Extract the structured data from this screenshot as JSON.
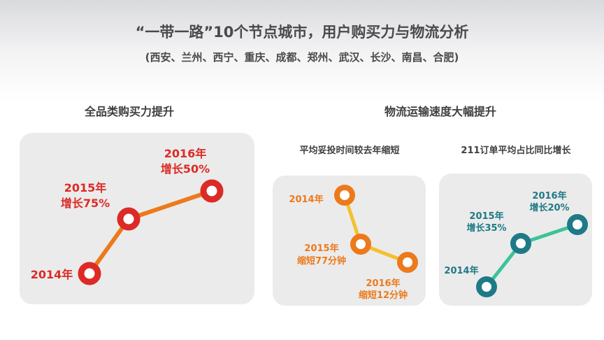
{
  "header": {
    "title": "“一带一路”10个节点城市，用户购买力与物流分析",
    "subtitle": "(西安、兰州、西宁、重庆、成都、郑州、武汉、长沙、南昌、合肥)"
  },
  "sections": {
    "left_title": "全品类购买力提升",
    "right_title": "物流运输速度大幅提升"
  },
  "colors": {
    "red": "#dc2a26",
    "orange": "#ec7a1c",
    "yellow": "#f2c12e",
    "teal": "#1e7a86",
    "green": "#3cc39a"
  },
  "chart_data": [
    {
      "type": "line",
      "title": "",
      "x": [
        "2014年",
        "2015年",
        "2016年"
      ],
      "point_labels": [
        {
          "year": "2014年",
          "text": ""
        },
        {
          "year": "2015年",
          "text": "增长75%"
        },
        {
          "year": "2016年",
          "text": "增长50%"
        }
      ],
      "values": [
        null,
        75,
        50
      ],
      "unit": "%"
    },
    {
      "type": "line",
      "title": "平均妥投时间较去年缩短",
      "x": [
        "2014年",
        "2015年",
        "2016年"
      ],
      "point_labels": [
        {
          "year": "2014年",
          "text": ""
        },
        {
          "year": "2015年",
          "text": "缩短77分钟"
        },
        {
          "year": "2016年",
          "text": "缩短12分钟"
        }
      ],
      "values": [
        null,
        77,
        12
      ],
      "unit": "分钟"
    },
    {
      "type": "line",
      "title": "211订单平均占比同比增长",
      "x": [
        "2014年",
        "2015年",
        "2016年"
      ],
      "point_labels": [
        {
          "year": "2014年",
          "text": ""
        },
        {
          "year": "2015年",
          "text": "增长35%"
        },
        {
          "year": "2016年",
          "text": "增长20%"
        }
      ],
      "values": [
        null,
        35,
        20
      ],
      "unit": "%"
    }
  ]
}
